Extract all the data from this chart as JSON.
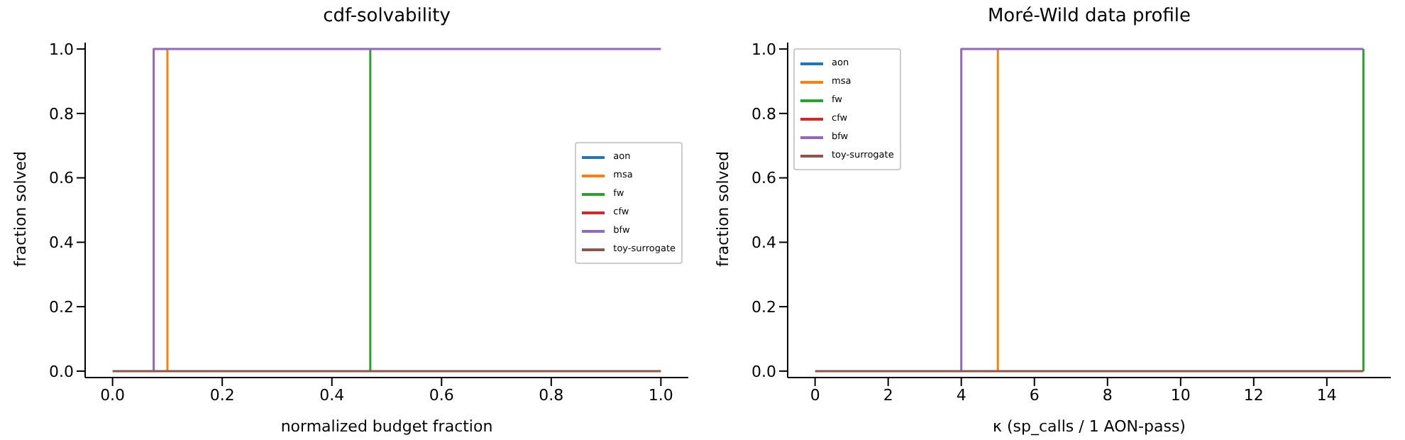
{
  "chart_data": [
    {
      "type": "step",
      "title": "cdf-solvability",
      "xlabel": "normalized budget fraction",
      "ylabel": "fraction solved",
      "xlim": [
        -0.05,
        1.05
      ],
      "ylim": [
        -0.02,
        1.02
      ],
      "xticks": [
        {
          "value": 0,
          "label": "0.0"
        },
        {
          "value": 0.2,
          "label": "0.2"
        },
        {
          "value": 0.4,
          "label": "0.4"
        },
        {
          "value": 0.6,
          "label": "0.6"
        },
        {
          "value": 0.8,
          "label": "0.8"
        },
        {
          "value": 1,
          "label": "1.0"
        }
      ],
      "yticks": [
        {
          "value": 0,
          "label": "0.0"
        },
        {
          "value": 0.2,
          "label": "0.2"
        },
        {
          "value": 0.4,
          "label": "0.4"
        },
        {
          "value": 0.6,
          "label": "0.6"
        },
        {
          "value": 0.8,
          "label": "0.8"
        },
        {
          "value": 1,
          "label": "1.0"
        }
      ],
      "legend": "center right",
      "marker": "none",
      "series": [
        {
          "name": "aon",
          "color": "#1f77b4"
        },
        {
          "name": "msa",
          "color": "#ff7f0e",
          "x": [
            0.1,
            0.1
          ],
          "values": [
            0,
            1
          ]
        },
        {
          "name": "fw",
          "color": "#2ca02c",
          "x": [
            0.47,
            0.47
          ],
          "values": [
            0,
            1
          ]
        },
        {
          "name": "cfw",
          "color": "#d62728"
        },
        {
          "name": "bfw",
          "color": "#9467bd",
          "x": [
            0.075,
            0.075,
            1
          ],
          "values": [
            0,
            1,
            1
          ]
        },
        {
          "name": "toy-surrogate",
          "color": "#8c564b",
          "x": [
            0,
            1
          ],
          "values": [
            0,
            0
          ]
        }
      ]
    },
    {
      "type": "step",
      "title": "Moré-Wild data profile",
      "xlabel": "κ (sp_calls / 1 AON-pass)",
      "ylabel": "fraction solved",
      "xlim": [
        -0.75,
        15.75
      ],
      "ylim": [
        -0.02,
        1.02
      ],
      "xticks": [
        0,
        2,
        4,
        6,
        8,
        10,
        12,
        14
      ],
      "yticks": [
        {
          "value": 0,
          "label": "0.0"
        },
        {
          "value": 0.2,
          "label": "0.2"
        },
        {
          "value": 0.4,
          "label": "0.4"
        },
        {
          "value": 0.6,
          "label": "0.6"
        },
        {
          "value": 0.8,
          "label": "0.8"
        },
        {
          "value": 1,
          "label": "1.0"
        }
      ],
      "legend": "top left",
      "marker": "none",
      "series": [
        {
          "name": "aon",
          "color": "#1f77b4"
        },
        {
          "name": "msa",
          "color": "#ff7f0e",
          "x": [
            5,
            5
          ],
          "values": [
            0,
            1
          ]
        },
        {
          "name": "fw",
          "color": "#2ca02c",
          "x": [
            15,
            15
          ],
          "values": [
            0,
            1
          ]
        },
        {
          "name": "cfw",
          "color": "#d62728"
        },
        {
          "name": "bfw",
          "color": "#9467bd",
          "x": [
            4,
            4,
            15
          ],
          "values": [
            0,
            1,
            1
          ]
        },
        {
          "name": "toy-surrogate",
          "color": "#8c564b",
          "x": [
            0,
            15
          ],
          "values": [
            0,
            0
          ]
        }
      ]
    }
  ]
}
